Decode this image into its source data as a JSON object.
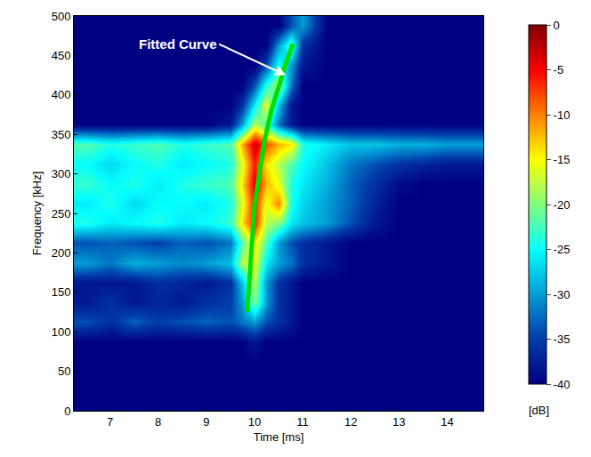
{
  "chart_data": {
    "type": "heatmap",
    "x_label": "Time [ms]",
    "y_label": "Frequency [kHz]",
    "xlim": [
      6.25,
      14.75
    ],
    "ylim": [
      0,
      500
    ],
    "xticks": [
      7,
      8,
      9,
      10,
      11,
      12,
      13,
      14
    ],
    "yticks": [
      0,
      50,
      100,
      150,
      200,
      250,
      300,
      350,
      400,
      450,
      500
    ],
    "grid": false,
    "x": [
      6.5,
      7,
      7.5,
      8,
      8.5,
      9,
      9.5,
      9.75,
      10,
      10.25,
      10.5,
      10.75,
      11,
      11.5,
      12,
      12.5,
      13,
      13.5,
      14,
      14.5
    ],
    "y": [
      12.5,
      37.5,
      62.5,
      87.5,
      112.5,
      137.5,
      162.5,
      187.5,
      212.5,
      237.5,
      262.5,
      287.5,
      312.5,
      337.5,
      362.5,
      387.5,
      412.5,
      437.5,
      462.5,
      487.5
    ],
    "z": [
      [
        -40,
        -40,
        -40,
        -40,
        -40,
        -40,
        -40,
        -40,
        -40,
        -40,
        -40,
        -40,
        -40,
        -40,
        -40,
        -40,
        -40,
        -40,
        -40,
        -40
      ],
      [
        -40,
        -40,
        -40,
        -40,
        -40,
        -40,
        -40,
        -40,
        -40,
        -40,
        -40,
        -40,
        -40,
        -40,
        -40,
        -40,
        -40,
        -40,
        -40,
        -40
      ],
      [
        -40,
        -40,
        -40,
        -40,
        -40,
        -40,
        -40,
        -40,
        -40,
        -40,
        -40,
        -40,
        -40,
        -40,
        -40,
        -40,
        -40,
        -40,
        -40,
        -40
      ],
      [
        -40,
        -40,
        -40,
        -40,
        -40,
        -40,
        -40,
        -40,
        -38,
        -40,
        -40,
        -40,
        -40,
        -40,
        -40,
        -40,
        -40,
        -40,
        -40,
        -40
      ],
      [
        -34,
        -36,
        -33,
        -35,
        -34,
        -33,
        -34,
        -32,
        -30,
        -34,
        -36,
        -38,
        -40,
        -40,
        -40,
        -40,
        -40,
        -40,
        -40,
        -40
      ],
      [
        -38,
        -36,
        -38,
        -37,
        -38,
        -36,
        -35,
        -30,
        -20,
        -30,
        -36,
        -38,
        -40,
        -40,
        -40,
        -40,
        -40,
        -40,
        -40,
        -40
      ],
      [
        -38,
        -38,
        -38,
        -36,
        -37,
        -38,
        -36,
        -28,
        -18,
        -30,
        -36,
        -38,
        -40,
        -40,
        -40,
        -40,
        -40,
        -40,
        -40,
        -40
      ],
      [
        -30,
        -32,
        -29,
        -30,
        -31,
        -30,
        -28,
        -18,
        -16,
        -26,
        -30,
        -32,
        -36,
        -38,
        -40,
        -40,
        -40,
        -40,
        -40,
        -40
      ],
      [
        -34,
        -33,
        -34,
        -35,
        -33,
        -34,
        -32,
        -22,
        -14,
        -22,
        -30,
        -34,
        -36,
        -38,
        -40,
        -40,
        -40,
        -40,
        -40,
        -40
      ],
      [
        -24,
        -26,
        -25,
        -24,
        -26,
        -25,
        -23,
        -14,
        -6,
        -18,
        -20,
        -26,
        -28,
        -30,
        -34,
        -38,
        -40,
        -40,
        -40,
        -40
      ],
      [
        -26,
        -24,
        -27,
        -25,
        -25,
        -26,
        -24,
        -16,
        -6,
        -16,
        -10,
        -24,
        -27,
        -30,
        -33,
        -37,
        -40,
        -40,
        -40,
        -40
      ],
      [
        -23,
        -25,
        -24,
        -26,
        -24,
        -23,
        -22,
        -14,
        -4,
        -12,
        -16,
        -24,
        -26,
        -29,
        -33,
        -36,
        -39,
        -40,
        -40,
        -40
      ],
      [
        -25,
        -27,
        -25,
        -24,
        -26,
        -25,
        -24,
        -16,
        -6,
        -14,
        -18,
        -22,
        -25,
        -28,
        -32,
        -34,
        -36,
        -37,
        -38,
        -38
      ],
      [
        -22,
        -24,
        -23,
        -22,
        -24,
        -23,
        -22,
        -12,
        -3,
        -8,
        -12,
        -14,
        -24,
        -26,
        -28,
        -28,
        -29,
        -29,
        -30,
        -30
      ],
      [
        -40,
        -40,
        -40,
        -40,
        -40,
        -40,
        -38,
        -30,
        -18,
        -22,
        -32,
        -38,
        -40,
        -40,
        -40,
        -40,
        -40,
        -40,
        -40,
        -40
      ],
      [
        -40,
        -40,
        -40,
        -40,
        -40,
        -40,
        -40,
        -36,
        -26,
        -16,
        -28,
        -38,
        -40,
        -40,
        -40,
        -40,
        -40,
        -40,
        -40,
        -40
      ],
      [
        -40,
        -40,
        -40,
        -40,
        -40,
        -40,
        -40,
        -40,
        -34,
        -24,
        -18,
        -32,
        -40,
        -40,
        -40,
        -40,
        -40,
        -40,
        -40,
        -40
      ],
      [
        -40,
        -40,
        -40,
        -40,
        -40,
        -40,
        -40,
        -40,
        -40,
        -34,
        -24,
        -30,
        -38,
        -40,
        -40,
        -40,
        -40,
        -40,
        -40,
        -40
      ],
      [
        -40,
        -40,
        -40,
        -40,
        -40,
        -40,
        -40,
        -40,
        -40,
        -40,
        -30,
        -22,
        -36,
        -40,
        -40,
        -40,
        -40,
        -40,
        -40,
        -40
      ],
      [
        -40,
        -40,
        -40,
        -40,
        -40,
        -40,
        -40,
        -40,
        -40,
        -40,
        -40,
        -34,
        -30,
        -40,
        -40,
        -40,
        -40,
        -40,
        -40,
        -40
      ]
    ],
    "colorbar": {
      "label": "[dB]",
      "range": [
        -40,
        0
      ],
      "ticks": [
        0,
        -5,
        -10,
        -15,
        -20,
        -25,
        -30,
        -35,
        -40
      ]
    },
    "series": [
      {
        "type": "line",
        "color": "#00e000",
        "x": [
          9.85,
          9.9,
          9.95,
          10.0,
          10.1,
          10.2,
          10.35,
          10.5,
          10.65,
          10.8
        ],
        "y": [
          125,
          175,
          220,
          260,
          300,
          340,
          380,
          410,
          440,
          465
        ]
      }
    ],
    "annotations": [
      {
        "text": "Fitted Curve",
        "x": 10.65,
        "y": 425
      }
    ]
  }
}
